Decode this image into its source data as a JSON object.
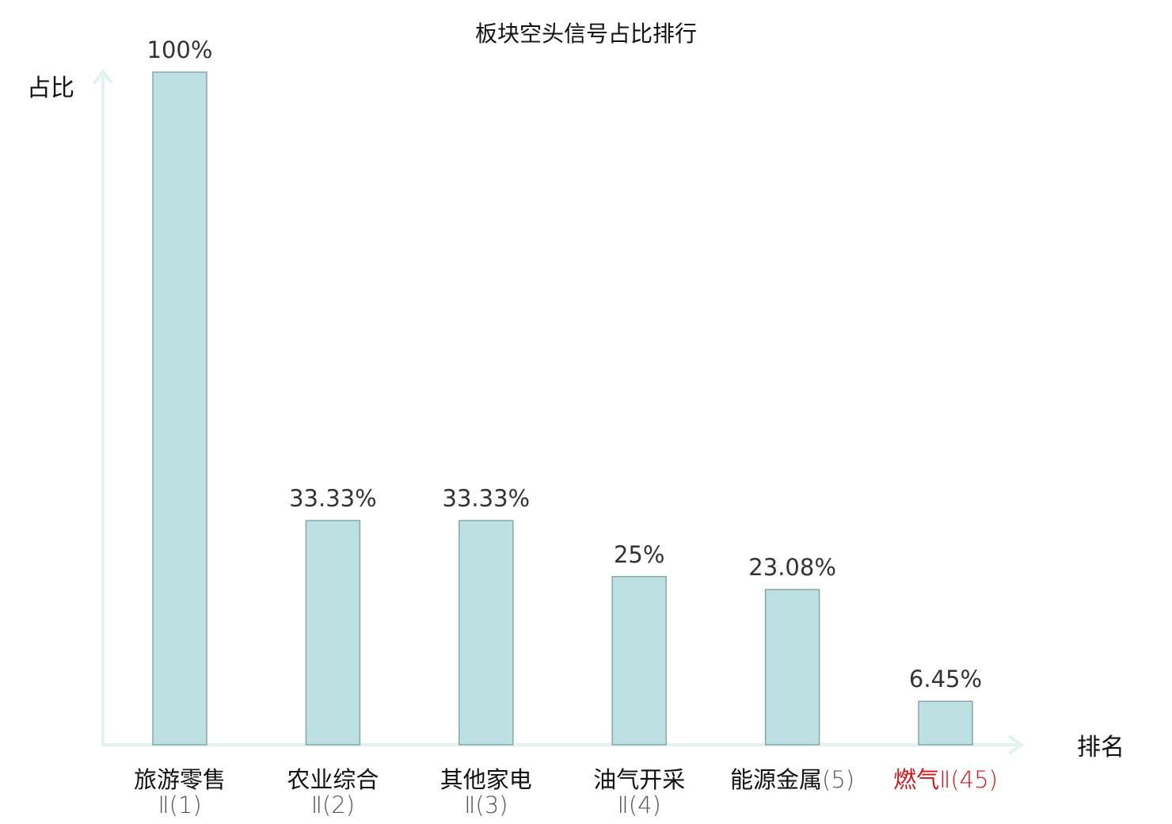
{
  "chart_data": {
    "type": "bar",
    "title": "板块空头信号占比排行",
    "ylabel": "占比",
    "xlabel": "排名",
    "ylim": [
      0,
      100
    ],
    "grid": false,
    "legend": "none",
    "categories": [
      {
        "name": "旅游零售",
        "rank": "Ⅱ(1)",
        "highlight": false
      },
      {
        "name": "农业综合",
        "rank": "Ⅱ(2)",
        "highlight": false
      },
      {
        "name": "其他家电",
        "rank": "Ⅱ(3)",
        "highlight": false
      },
      {
        "name": "油气开采",
        "rank": "Ⅱ(4)",
        "highlight": false
      },
      {
        "name": "能源金属",
        "rank": "(5)",
        "highlight": false
      },
      {
        "name": "燃气",
        "rank": "Ⅱ(45)",
        "highlight": true
      }
    ],
    "values": [
      100,
      33.33,
      33.33,
      25,
      23.08,
      6.45
    ],
    "value_labels": [
      "100%",
      "33.33%",
      "33.33%",
      "25%",
      "23.08%",
      "6.45%"
    ],
    "colors": {
      "bar_fill": "#bde0e3",
      "bar_stroke": "#86a7aa",
      "axis": "#e1f3f1",
      "highlight": "#d0161a"
    }
  }
}
